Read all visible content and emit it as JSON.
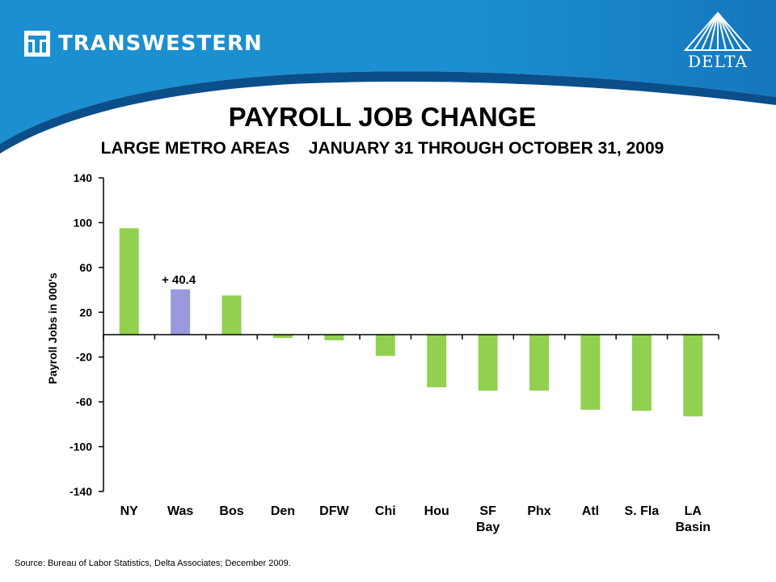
{
  "header": {
    "company_logo_text": "TRANSWESTERN",
    "partner_logo_text": "DELTA",
    "colors": {
      "header_blue": "#1b8fd0",
      "header_dark_blue": "#0a4f8a"
    }
  },
  "chart_data": {
    "type": "bar",
    "title": "PAYROLL JOB CHANGE",
    "subtitle": "LARGE METRO AREAS    JANUARY 31 THROUGH OCTOBER 31, 2009",
    "xlabel": "",
    "ylabel": "Payroll Jobs in 000's",
    "ylim": [
      -140,
      140
    ],
    "yticks": [
      140,
      100,
      60,
      20,
      -20,
      -60,
      -100,
      -140
    ],
    "categories": [
      [
        "NY"
      ],
      [
        "Was"
      ],
      [
        "Bos"
      ],
      [
        "Den"
      ],
      [
        "DFW"
      ],
      [
        "Chi"
      ],
      [
        "Hou"
      ],
      [
        "SF",
        "Bay"
      ],
      [
        "Phx"
      ],
      [
        "Atl"
      ],
      [
        "S. Fla"
      ],
      [
        "LA",
        "Basin"
      ]
    ],
    "values": [
      95,
      40.4,
      35,
      -3,
      -5,
      -19,
      -47,
      -50,
      -50,
      -67,
      -68,
      -73
    ],
    "highlight_index": 1,
    "highlight_label": "+ 40.4",
    "colors": {
      "bar": "#92d050",
      "highlight": "#9999dd",
      "axis": "#000000"
    },
    "grid": false,
    "legend": "none"
  },
  "footer": {
    "source": "Source: Bureau  of Labor Statistics, Delta Associates; December 2009."
  }
}
